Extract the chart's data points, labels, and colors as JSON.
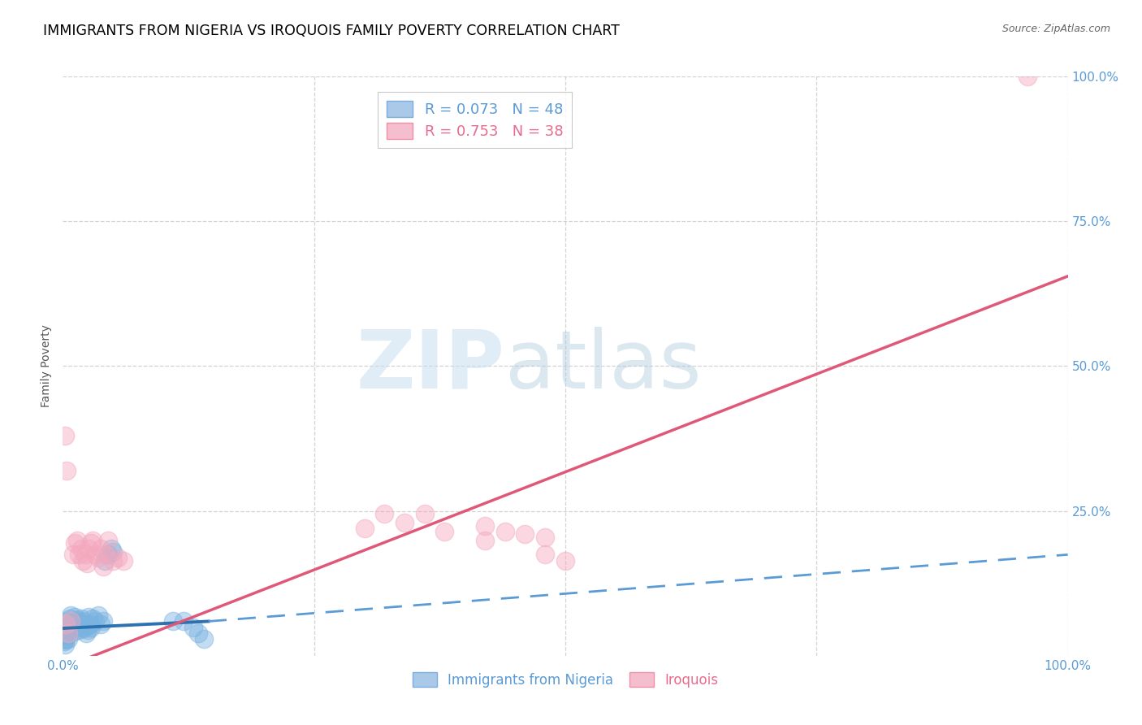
{
  "title": "IMMIGRANTS FROM NIGERIA VS IROQUOIS FAMILY POVERTY CORRELATION CHART",
  "source": "Source: ZipAtlas.com",
  "ylabel": "Family Poverty",
  "xlim": [
    0,
    1
  ],
  "ylim": [
    0,
    1
  ],
  "watermark_zip": "ZIP",
  "watermark_atlas": "atlas",
  "legend_entries": [
    {
      "label": "R = 0.073   N = 48",
      "color": "#5b9bd5"
    },
    {
      "label": "R = 0.753   N = 38",
      "color": "#e86c8d"
    }
  ],
  "legend_bottom": [
    "Immigrants from Nigeria",
    "Iroquois"
  ],
  "blue_color": "#7ab3e0",
  "pink_color": "#f4a8be",
  "blue_scatter": [
    [
      0.002,
      0.055
    ],
    [
      0.003,
      0.045
    ],
    [
      0.004,
      0.06
    ],
    [
      0.005,
      0.05
    ],
    [
      0.006,
      0.055
    ],
    [
      0.007,
      0.065
    ],
    [
      0.008,
      0.07
    ],
    [
      0.009,
      0.048
    ],
    [
      0.01,
      0.058
    ],
    [
      0.011,
      0.042
    ],
    [
      0.012,
      0.068
    ],
    [
      0.013,
      0.052
    ],
    [
      0.014,
      0.062
    ],
    [
      0.015,
      0.055
    ],
    [
      0.016,
      0.045
    ],
    [
      0.017,
      0.058
    ],
    [
      0.018,
      0.065
    ],
    [
      0.019,
      0.05
    ],
    [
      0.02,
      0.06
    ],
    [
      0.021,
      0.048
    ],
    [
      0.022,
      0.055
    ],
    [
      0.023,
      0.04
    ],
    [
      0.024,
      0.052
    ],
    [
      0.025,
      0.045
    ],
    [
      0.026,
      0.068
    ],
    [
      0.027,
      0.055
    ],
    [
      0.028,
      0.05
    ],
    [
      0.03,
      0.065
    ],
    [
      0.032,
      0.06
    ],
    [
      0.035,
      0.07
    ],
    [
      0.038,
      0.055
    ],
    [
      0.04,
      0.06
    ],
    [
      0.042,
      0.165
    ],
    [
      0.045,
      0.175
    ],
    [
      0.048,
      0.185
    ],
    [
      0.05,
      0.18
    ],
    [
      0.001,
      0.038
    ],
    [
      0.001,
      0.03
    ],
    [
      0.001,
      0.025
    ],
    [
      0.002,
      0.02
    ],
    [
      0.003,
      0.028
    ],
    [
      0.004,
      0.035
    ],
    [
      0.005,
      0.03
    ],
    [
      0.11,
      0.06
    ],
    [
      0.12,
      0.06
    ],
    [
      0.13,
      0.05
    ],
    [
      0.135,
      0.04
    ],
    [
      0.14,
      0.03
    ]
  ],
  "pink_scatter": [
    [
      0.003,
      0.055
    ],
    [
      0.004,
      0.32
    ],
    [
      0.008,
      0.06
    ],
    [
      0.01,
      0.175
    ],
    [
      0.012,
      0.195
    ],
    [
      0.014,
      0.2
    ],
    [
      0.016,
      0.175
    ],
    [
      0.018,
      0.185
    ],
    [
      0.02,
      0.165
    ],
    [
      0.022,
      0.175
    ],
    [
      0.024,
      0.16
    ],
    [
      0.026,
      0.185
    ],
    [
      0.028,
      0.195
    ],
    [
      0.03,
      0.2
    ],
    [
      0.032,
      0.175
    ],
    [
      0.035,
      0.17
    ],
    [
      0.038,
      0.185
    ],
    [
      0.04,
      0.155
    ],
    [
      0.042,
      0.175
    ],
    [
      0.045,
      0.2
    ],
    [
      0.05,
      0.165
    ],
    [
      0.055,
      0.17
    ],
    [
      0.06,
      0.165
    ],
    [
      0.3,
      0.22
    ],
    [
      0.36,
      0.245
    ],
    [
      0.38,
      0.215
    ],
    [
      0.42,
      0.2
    ],
    [
      0.48,
      0.175
    ],
    [
      0.5,
      0.165
    ],
    [
      0.005,
      0.04
    ],
    [
      0.002,
      0.38
    ],
    [
      0.32,
      0.245
    ],
    [
      0.34,
      0.23
    ],
    [
      0.42,
      0.225
    ],
    [
      0.44,
      0.215
    ],
    [
      0.46,
      0.21
    ],
    [
      0.48,
      0.205
    ],
    [
      0.96,
      1.0
    ]
  ],
  "blue_line_solid": [
    [
      0.0,
      0.048
    ],
    [
      0.145,
      0.06
    ]
  ],
  "blue_line_dash": [
    [
      0.145,
      0.06
    ],
    [
      1.0,
      0.175
    ]
  ],
  "pink_line": [
    [
      0.0,
      -0.02
    ],
    [
      1.0,
      0.655
    ]
  ],
  "grid_color": "#c8c8c8",
  "title_fontsize": 12.5,
  "axis_label_fontsize": 10,
  "tick_fontsize": 11,
  "right_tick_color": "#5b9bd5",
  "bottom_tick_color": "#5b9bd5"
}
